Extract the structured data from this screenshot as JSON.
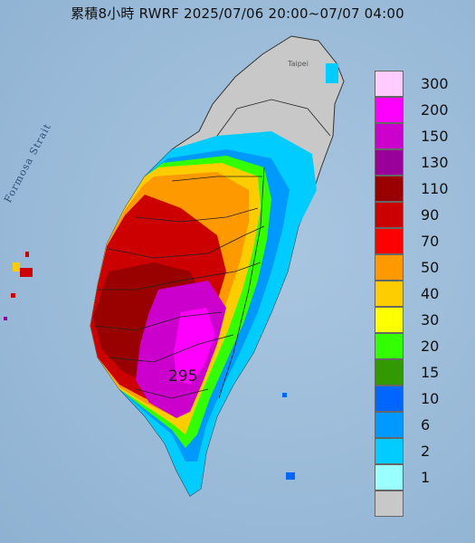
{
  "title": "累積8小時 RWRF 2025/07/06 20:00~07/07 04:00",
  "strait_label": "Formosa Strait",
  "city_label": "Taipei",
  "max_value": "295",
  "legend": {
    "items": [
      {
        "label": "300",
        "color": "#ffccff"
      },
      {
        "label": "200",
        "color": "#ff00ff"
      },
      {
        "label": "150",
        "color": "#cc00cc"
      },
      {
        "label": "130",
        "color": "#990099"
      },
      {
        "label": "110",
        "color": "#990000"
      },
      {
        "label": "90",
        "color": "#cc0000"
      },
      {
        "label": "70",
        "color": "#ff0000"
      },
      {
        "label": "50",
        "color": "#ff9900"
      },
      {
        "label": "40",
        "color": "#ffcc00"
      },
      {
        "label": "30",
        "color": "#ffff00"
      },
      {
        "label": "20",
        "color": "#33ff00"
      },
      {
        "label": "15",
        "color": "#339900"
      },
      {
        "label": "10",
        "color": "#0066ff"
      },
      {
        "label": "6",
        "color": "#0099ff"
      },
      {
        "label": "2",
        "color": "#00ccff"
      },
      {
        "label": "1",
        "color": "#99ffff"
      },
      {
        "label": "",
        "color": "#c8c8c8"
      }
    ]
  }
}
